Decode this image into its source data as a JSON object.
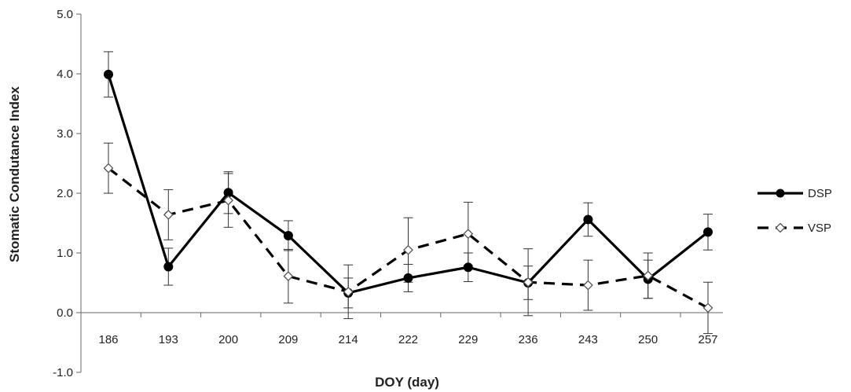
{
  "chart_data": {
    "type": "line",
    "xlabel": "DOY (day)",
    "ylabel": "Stomatic Condutance Index",
    "categories": [
      "186",
      "193",
      "200",
      "209",
      "214",
      "222",
      "229",
      "236",
      "243",
      "250",
      "257"
    ],
    "ylim": [
      -1.0,
      5.0
    ],
    "yticks": [
      "-1.0",
      "0.0",
      "1.0",
      "2.0",
      "3.0",
      "4.0",
      "5.0"
    ],
    "yticks_values": [
      -1,
      0,
      1,
      2,
      3,
      4,
      5
    ],
    "grid": false,
    "legend_position": "right",
    "series": [
      {
        "name": "DSP",
        "style": "solid",
        "marker": "filled-circle",
        "color": "#000000",
        "values": [
          3.99,
          0.77,
          2.01,
          1.29,
          0.33,
          0.58,
          0.76,
          0.5,
          1.56,
          0.56,
          1.35
        ],
        "err": [
          0.38,
          0.31,
          0.35,
          0.25,
          0.25,
          0.23,
          0.24,
          0.28,
          0.28,
          0.32,
          0.3
        ]
      },
      {
        "name": "VSP",
        "style": "dashed",
        "marker": "open-diamond",
        "color": "#000000",
        "values": [
          2.42,
          1.64,
          1.88,
          0.61,
          0.35,
          1.05,
          1.32,
          0.51,
          0.46,
          0.62,
          0.08
        ],
        "err": [
          0.42,
          0.42,
          0.45,
          0.45,
          0.45,
          0.54,
          0.53,
          0.56,
          0.42,
          0.38,
          0.43
        ]
      }
    ]
  }
}
